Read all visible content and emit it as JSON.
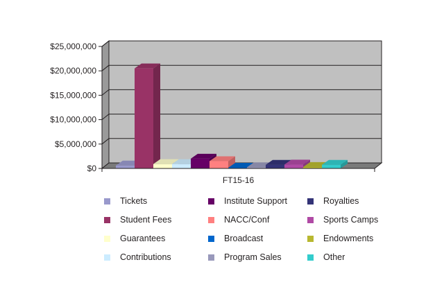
{
  "chart_data": {
    "type": "bar",
    "style": "3d-clustered-column",
    "categories": [
      "FT15-16"
    ],
    "ylim": [
      0,
      25000000
    ],
    "yticks": [
      "$0",
      "$5,000,000",
      "$10,000,000",
      "$15,000,000",
      "$20,000,000",
      "$25,000,000"
    ],
    "grid": true,
    "legend_position": "bottom",
    "series": [
      {
        "name": "Tickets",
        "values": [
          600000
        ],
        "color": "#9999cc"
      },
      {
        "name": "Student Fees",
        "values": [
          20500000
        ],
        "color": "#993366"
      },
      {
        "name": "Guarantees",
        "values": [
          900000
        ],
        "color": "#ffffcc"
      },
      {
        "name": "Contributions",
        "values": [
          900000
        ],
        "color": "#ccecff"
      },
      {
        "name": "Institute Support",
        "values": [
          2000000
        ],
        "color": "#660066"
      },
      {
        "name": "NACC/Conf",
        "values": [
          1500000
        ],
        "color": "#ff8080"
      },
      {
        "name": "Broadcast",
        "values": [
          150000
        ],
        "color": "#0066cc"
      },
      {
        "name": "Program Sales",
        "values": [
          250000
        ],
        "color": "#9999bb"
      },
      {
        "name": "Royalties",
        "values": [
          750000
        ],
        "color": "#333377"
      },
      {
        "name": "Sports Camps",
        "values": [
          800000
        ],
        "color": "#b04aa5"
      },
      {
        "name": "Endowments",
        "values": [
          300000
        ],
        "color": "#b8b830"
      },
      {
        "name": "Other",
        "values": [
          750000
        ],
        "color": "#33cccc"
      }
    ]
  }
}
